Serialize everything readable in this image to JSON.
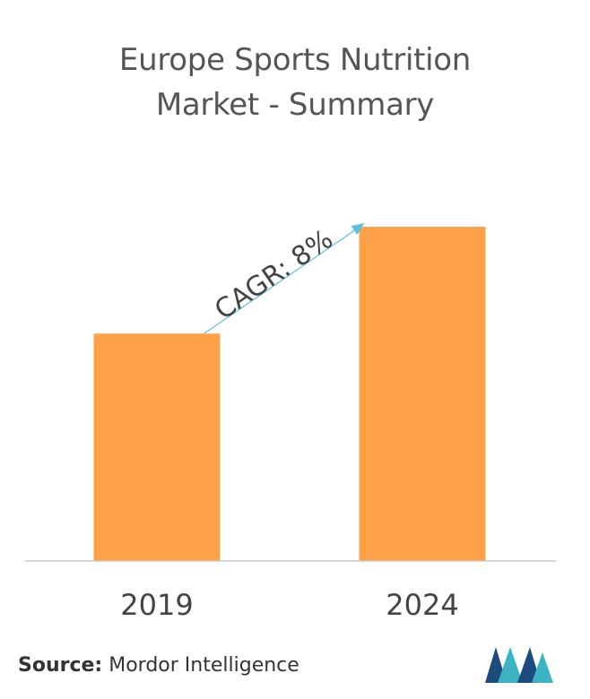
{
  "title": {
    "line1": "Europe Sports Nutrition",
    "line2": "Market - Summary"
  },
  "chart_data": {
    "type": "bar",
    "categories": [
      "2019",
      "2024"
    ],
    "values": [
      1.0,
      1.47
    ],
    "ylim": [
      0,
      1.47
    ],
    "colors": {
      "bar": "#ffa148",
      "axis": "#cccccc",
      "arrow": "#5bc0de"
    },
    "annotation": "CAGR: 8%",
    "grid": false
  },
  "source": {
    "label": "Source:",
    "text": "Mordor Intelligence"
  },
  "logo": {
    "icon": "mordor-intelligence-logo",
    "colors": [
      "#1c4b7e",
      "#3bb3c3"
    ]
  }
}
